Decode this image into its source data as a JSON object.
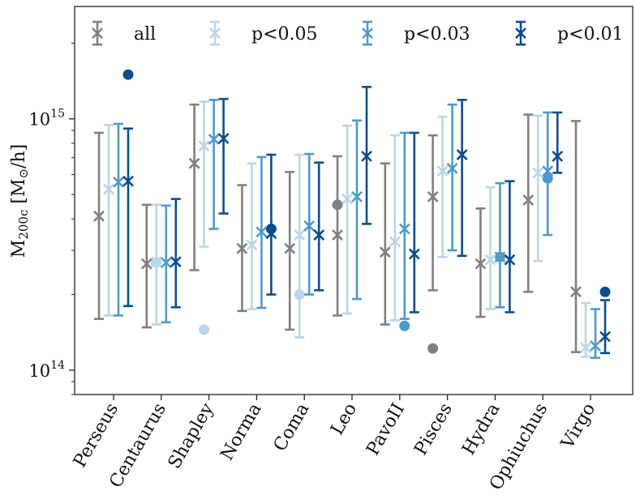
{
  "chart_data": {
    "type": "scatter",
    "subtype": "errorbar",
    "title": "",
    "xlabel": "",
    "ylabel": "M200c [M⊙/h]",
    "ylabel_parts": {
      "main": "M",
      "sub": "200c",
      "unit_open": "[M",
      "unit_sub": "⊙",
      "unit_close": "/h]"
    },
    "yscale": "log",
    "ylim": [
      80000000000000,
      2800000000000000
    ],
    "yticks": [
      {
        "value": 100000000000000,
        "base": "10",
        "exp": "14"
      },
      {
        "value": 1000000000000000,
        "base": "10",
        "exp": "15"
      }
    ],
    "legend_position": "top",
    "categories": [
      "Perseus",
      "Centaurus",
      "Shapley",
      "Norma",
      "Coma",
      "Leo",
      "PavoII",
      "Pisces",
      "Hydra",
      "Ophiuchus",
      "Virgo"
    ],
    "series": [
      {
        "name": "all",
        "color": "#808080",
        "values": [
          410000000000000,
          265000000000000,
          665000000000000,
          305000000000000,
          305000000000000,
          345000000000000,
          295000000000000,
          490000000000000,
          265000000000000,
          475000000000000,
          205000000000000
        ],
        "lower": [
          160000000000000,
          148000000000000,
          250000000000000,
          172000000000000,
          145000000000000,
          165000000000000,
          152000000000000,
          208000000000000,
          163000000000000,
          205000000000000,
          118000000000000
        ],
        "upper": [
          880000000000000,
          455000000000000,
          1140000000000000,
          545000000000000,
          615000000000000,
          710000000000000,
          665000000000000,
          860000000000000,
          440000000000000,
          1040000000000000,
          980000000000000
        ]
      },
      {
        "name": "p<0.05",
        "color": "#b9d6ea",
        "values": [
          525000000000000,
          270000000000000,
          780000000000000,
          315000000000000,
          345000000000000,
          480000000000000,
          325000000000000,
          620000000000000,
          275000000000000,
          610000000000000,
          123000000000000
        ],
        "lower": [
          165000000000000,
          152000000000000,
          310000000000000,
          175000000000000,
          135000000000000,
          168000000000000,
          158000000000000,
          282000000000000,
          175000000000000,
          272000000000000,
          113000000000000
        ],
        "upper": [
          945000000000000,
          455000000000000,
          1170000000000000,
          665000000000000,
          720000000000000,
          940000000000000,
          860000000000000,
          1020000000000000,
          535000000000000,
          1030000000000000,
          185000000000000
        ]
      },
      {
        "name": "p<0.03",
        "color": "#4f9ac9",
        "values": [
          560000000000000,
          268000000000000,
          830000000000000,
          355000000000000,
          375000000000000,
          490000000000000,
          365000000000000,
          635000000000000,
          282000000000000,
          620000000000000,
          125000000000000
        ],
        "lower": [
          165000000000000,
          155000000000000,
          365000000000000,
          177000000000000,
          200000000000000,
          192000000000000,
          160000000000000,
          300000000000000,
          178000000000000,
          345000000000000,
          112000000000000
        ],
        "upper": [
          955000000000000,
          452000000000000,
          1190000000000000,
          705000000000000,
          725000000000000,
          985000000000000,
          880000000000000,
          1140000000000000,
          555000000000000,
          1060000000000000,
          175000000000000
        ]
      },
      {
        "name": "p<0.01",
        "color": "#0b4c8f",
        "values": [
          565000000000000,
          270000000000000,
          835000000000000,
          350000000000000,
          345000000000000,
          710000000000000,
          290000000000000,
          720000000000000,
          275000000000000,
          710000000000000,
          136000000000000
        ],
        "lower": [
          180000000000000,
          178000000000000,
          420000000000000,
          200000000000000,
          208000000000000,
          382000000000000,
          170000000000000,
          285000000000000,
          170000000000000,
          610000000000000,
          117000000000000
        ],
        "upper": [
          915000000000000,
          480000000000000,
          1200000000000000,
          720000000000000,
          670000000000000,
          1340000000000000,
          880000000000000,
          1190000000000000,
          565000000000000,
          1060000000000000,
          190000000000000
        ]
      }
    ],
    "reference_points": [
      {
        "category": "Perseus",
        "series": "p<0.01",
        "value": 1500000000000000
      },
      {
        "category": "Centaurus",
        "series": "p<0.05",
        "value": 268000000000000
      },
      {
        "category": "Shapley",
        "series": "p<0.05",
        "value": 145000000000000
      },
      {
        "category": "Norma",
        "series": "p<0.01",
        "value": 365000000000000
      },
      {
        "category": "Coma",
        "series": "p<0.05",
        "value": 200000000000000
      },
      {
        "category": "Leo",
        "series": "all",
        "value": 455000000000000
      },
      {
        "category": "PavoII",
        "series": "p<0.03",
        "value": 150000000000000
      },
      {
        "category": "Pisces",
        "series": "all",
        "value": 122000000000000
      },
      {
        "category": "Hydra",
        "series": "p<0.03",
        "value": 282000000000000
      },
      {
        "category": "Ophiuchus",
        "series": "p<0.03",
        "value": 580000000000000
      },
      {
        "category": "Virgo",
        "series": "p<0.01",
        "value": 205000000000000
      }
    ]
  }
}
